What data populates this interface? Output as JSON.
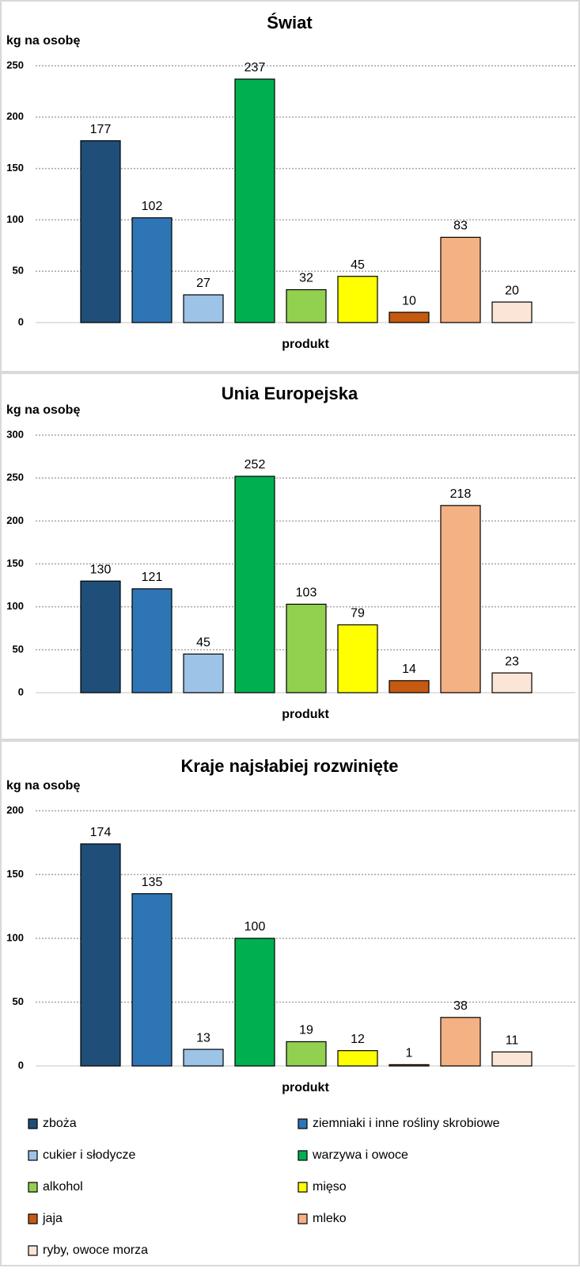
{
  "chart_data": [
    {
      "type": "bar",
      "title": "Świat",
      "ylabel": "kg na osobę",
      "xlabel": "produkt",
      "categories": [
        "zboża",
        "ziemniaki i inne rośliny skrobiowe",
        "cukier i słodycze",
        "warzywa i owoce",
        "alkohol",
        "mięso",
        "jaja",
        "mleko",
        "ryby, owoce morza"
      ],
      "values": [
        177,
        102,
        27,
        237,
        32,
        45,
        10,
        83,
        20
      ],
      "ylim": [
        0,
        250
      ],
      "yticks": [
        0,
        50,
        100,
        150,
        200,
        250
      ],
      "grid": true
    },
    {
      "type": "bar",
      "title": "Unia Europejska",
      "ylabel": "kg na osobę",
      "xlabel": "produkt",
      "categories": [
        "zboża",
        "ziemniaki i inne rośliny skrobiowe",
        "cukier i słodycze",
        "warzywa i owoce",
        "alkohol",
        "mięso",
        "jaja",
        "mleko",
        "ryby, owoce morza"
      ],
      "values": [
        130,
        121,
        45,
        252,
        103,
        79,
        14,
        218,
        23
      ],
      "ylim": [
        0,
        300
      ],
      "yticks": [
        0,
        50,
        100,
        150,
        200,
        250,
        300
      ],
      "grid": true
    },
    {
      "type": "bar",
      "title": "Kraje najsłabiej rozwinięte",
      "ylabel": "kg na osobę",
      "xlabel": "produkt",
      "categories": [
        "zboża",
        "ziemniaki i inne rośliny skrobiowe",
        "cukier i słodycze",
        "warzywa i owoce",
        "alkohol",
        "mięso",
        "jaja",
        "mleko",
        "ryby, owoce morza"
      ],
      "values": [
        174,
        135,
        13,
        100,
        19,
        12,
        1,
        38,
        11
      ],
      "ylim": [
        0,
        200
      ],
      "yticks": [
        0,
        50,
        100,
        150,
        200
      ],
      "grid": true
    }
  ],
  "legend": {
    "placement": "bottom",
    "items": [
      {
        "label": "zboża",
        "color": "#1F4E79"
      },
      {
        "label": "ziemniaki i inne rośliny skrobiowe",
        "color": "#2E75B6"
      },
      {
        "label": "cukier i słodycze",
        "color": "#9DC3E6"
      },
      {
        "label": "warzywa i owoce",
        "color": "#00B050"
      },
      {
        "label": "alkohol",
        "color": "#92D050"
      },
      {
        "label": "mięso",
        "color": "#FFFF00"
      },
      {
        "label": "jaja",
        "color": "#C55A11"
      },
      {
        "label": "mleko",
        "color": "#F4B183"
      },
      {
        "label": "ryby, owoce morza",
        "color": "#FBE5D6"
      }
    ]
  }
}
